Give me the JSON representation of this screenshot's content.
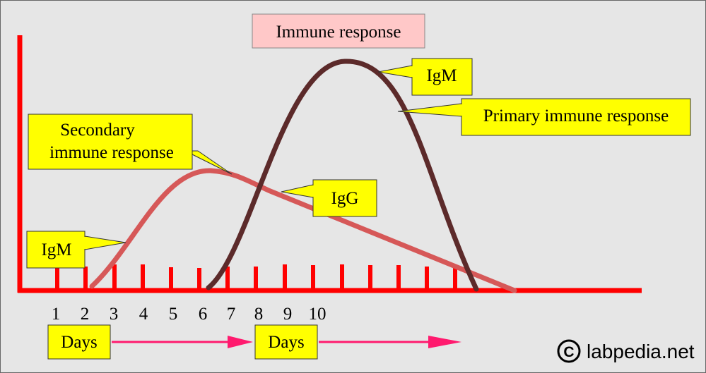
{
  "title": "Immune response",
  "callouts": {
    "igm_top": "IgM",
    "primary": "Primary immune response",
    "secondary_line1": "Secondary",
    "secondary_line2": "immune response",
    "igg": "IgG",
    "igm_left": "IgM"
  },
  "day_numbers": [
    "1",
    "2",
    "3",
    "4",
    "5",
    "6",
    "7",
    "8",
    "9",
    "10"
  ],
  "days_label_1": "Days",
  "days_label_2": "Days",
  "watermark": "labpedia.net",
  "watermark_symbol": "C",
  "colors": {
    "background": "#e6e6e6",
    "axis": "#ff0000",
    "primary_curve": "#5c2a2a",
    "secondary_curve": "#d65858",
    "callout_fill": "#ffff00",
    "title_fill": "#ffc8c8",
    "arrow": "#ff1a6e"
  }
}
